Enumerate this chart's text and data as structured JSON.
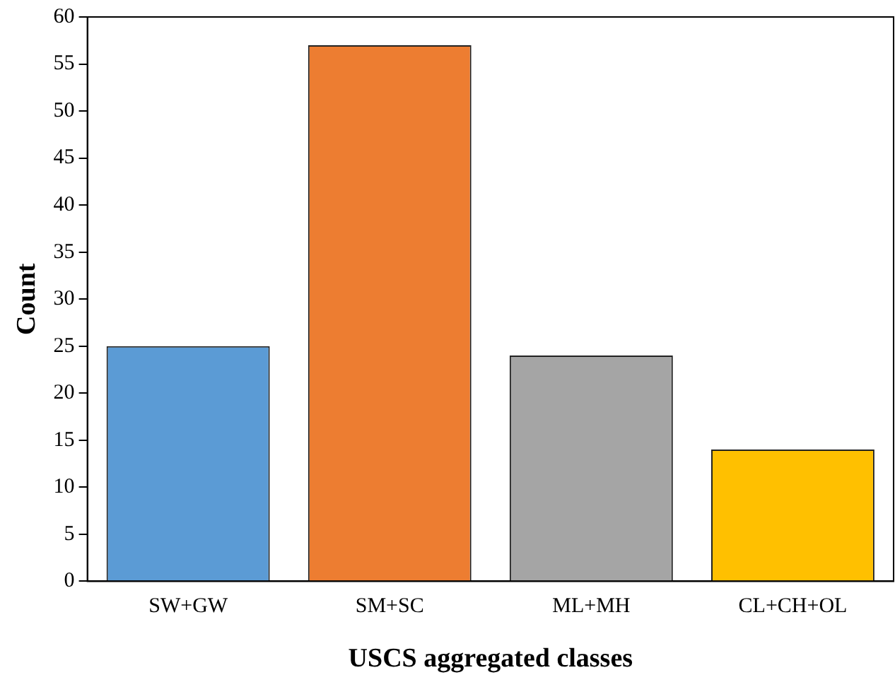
{
  "chart_data": {
    "type": "bar",
    "xlabel": "USCS aggregated classes",
    "ylabel": "Count",
    "categories": [
      "SW+GW",
      "SM+SC",
      "ML+MH",
      "CL+CH+OL"
    ],
    "values": [
      25,
      57,
      24,
      14
    ],
    "colors": [
      "#5b9bd5",
      "#ed7d31",
      "#a5a5a5",
      "#ffc000"
    ],
    "ylim": [
      0,
      60
    ],
    "yticks": [
      0,
      5,
      10,
      15,
      20,
      25,
      30,
      35,
      40,
      45,
      50,
      55,
      60
    ],
    "grid": false,
    "legend": false
  }
}
